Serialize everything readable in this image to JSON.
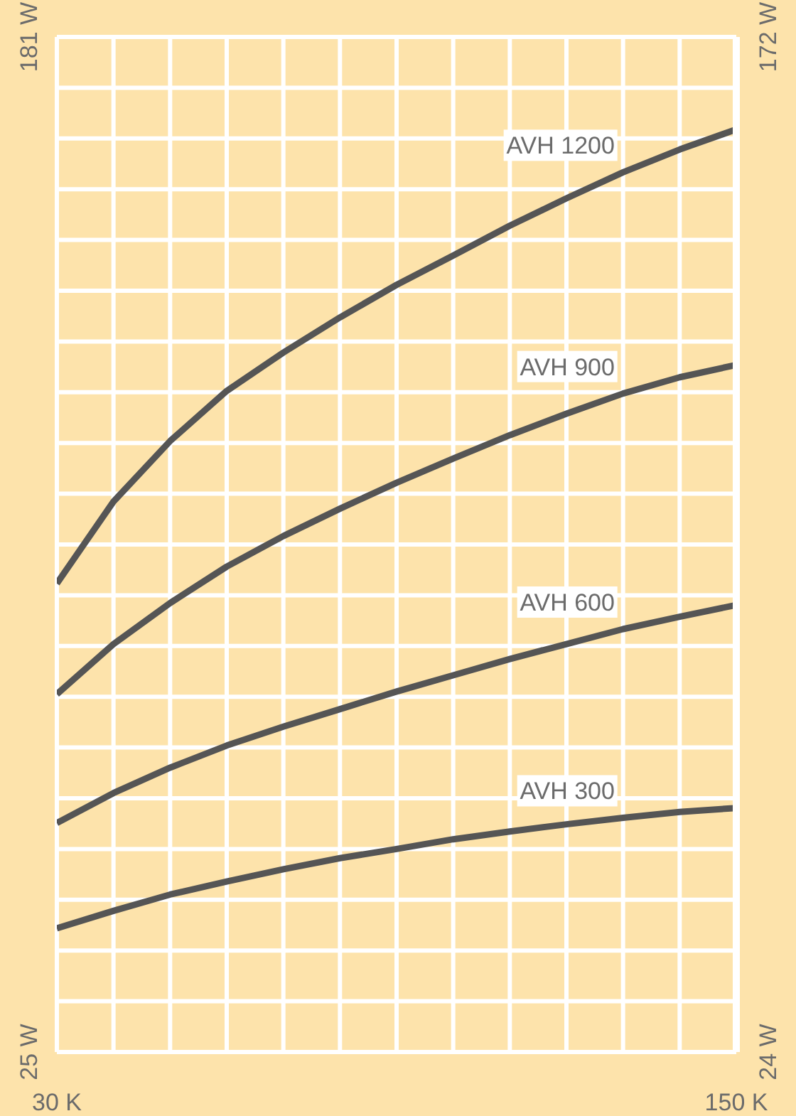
{
  "chart_data": {
    "type": "line",
    "x": [
      30,
      40,
      50,
      60,
      70,
      80,
      90,
      100,
      110,
      120,
      130,
      140,
      150
    ],
    "series": [
      {
        "name": "AVH 1200",
        "color": "#555555",
        "values": [
          97,
          109.6,
          118.9,
          126.6,
          132.5,
          137.9,
          142.9,
          147.4,
          152,
          156.2,
          160.2,
          163.7,
          166.8
        ]
      },
      {
        "name": "AVH 900",
        "color": "#555555",
        "values": [
          80,
          87.7,
          94,
          99.6,
          104.3,
          108.5,
          112.5,
          116.2,
          119.8,
          123.1,
          126.2,
          128.7,
          130.6
        ]
      },
      {
        "name": "AVH 600",
        "color": "#555555",
        "values": [
          60.2,
          64.8,
          68.7,
          72.1,
          75,
          77.7,
          80.4,
          82.9,
          85.4,
          87.7,
          90,
          91.9,
          93.7
        ]
      },
      {
        "name": "AVH 300",
        "color": "#555555",
        "values": [
          44,
          46.7,
          49.2,
          51.2,
          53.1,
          54.8,
          56.2,
          57.7,
          58.9,
          60,
          61,
          61.9,
          62.5
        ]
      }
    ],
    "xlim": [
      30,
      150
    ],
    "xticks": [
      {
        "value": 30,
        "label": "30 K"
      },
      {
        "value": 40,
        "label": null
      },
      {
        "value": 50,
        "label": null
      },
      {
        "value": 60,
        "label": null
      },
      {
        "value": 70,
        "label": null
      },
      {
        "value": 80,
        "label": null
      },
      {
        "value": 90,
        "label": null
      },
      {
        "value": 100,
        "label": null
      },
      {
        "value": 110,
        "label": null
      },
      {
        "value": 120,
        "label": null
      },
      {
        "value": 130,
        "label": null
      },
      {
        "value": 140,
        "label": null
      },
      {
        "value": 150,
        "label": "150 K"
      }
    ],
    "ylim": [
      25,
      181
    ],
    "yticks": [
      {
        "value": 25,
        "label": "25 W"
      },
      {
        "value": 32.8,
        "label": null
      },
      {
        "value": 40.6,
        "label": null
      },
      {
        "value": 48.4,
        "label": null
      },
      {
        "value": 56.2,
        "label": null
      },
      {
        "value": 64,
        "label": null
      },
      {
        "value": 71.8,
        "label": null
      },
      {
        "value": 79.6,
        "label": null
      },
      {
        "value": 87.4,
        "label": null
      },
      {
        "value": 95.2,
        "label": null
      },
      {
        "value": 103,
        "label": null
      },
      {
        "value": 110.8,
        "label": null
      },
      {
        "value": 118.6,
        "label": null
      },
      {
        "value": 126.4,
        "label": null
      },
      {
        "value": 134.2,
        "label": null
      },
      {
        "value": 142,
        "label": null
      },
      {
        "value": 149.8,
        "label": null
      },
      {
        "value": 157.6,
        "label": null
      },
      {
        "value": 165.4,
        "label": null
      },
      {
        "value": 173.2,
        "label": null
      },
      {
        "value": 181,
        "label": "181 W"
      }
    ],
    "y2lim": [
      24,
      172
    ],
    "y2ticks": [
      {
        "value": 24,
        "label": "24 W"
      },
      {
        "value": 172,
        "label": "172 W"
      }
    ],
    "grid": true,
    "marker": "none",
    "line_style": "solid",
    "legend": false
  }
}
